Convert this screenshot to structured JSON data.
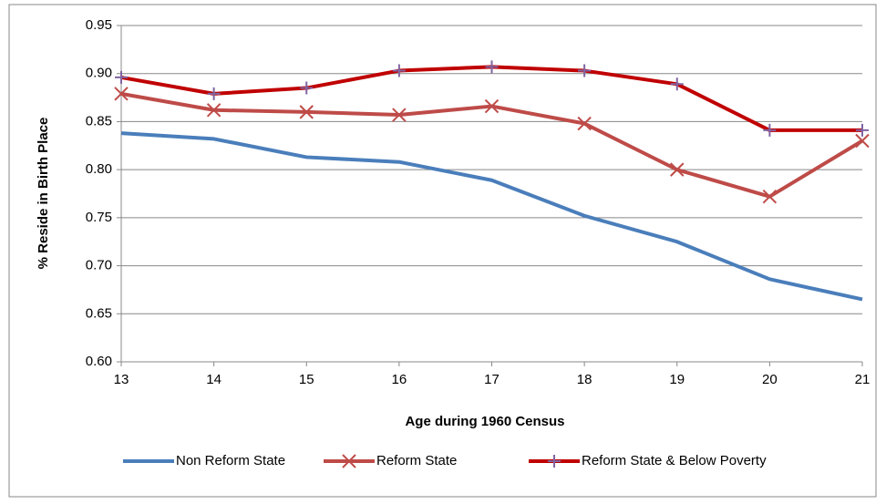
{
  "chart_data": {
    "type": "line",
    "x_label": "Age during 1960 Census",
    "y_label": "% Reside in Birth Place",
    "x": [
      13,
      14,
      15,
      16,
      17,
      18,
      19,
      20,
      21
    ],
    "xlim": [
      13,
      21
    ],
    "xticks": [
      13,
      14,
      15,
      16,
      17,
      18,
      19,
      20,
      21
    ],
    "ylim": [
      0.6,
      0.95
    ],
    "yticks": [
      {
        "value": 0.6,
        "label": "0.60"
      },
      0.65,
      {
        "value": 0.7,
        "label": "0.70"
      },
      0.75,
      {
        "value": 0.8,
        "label": "0.80"
      },
      0.85,
      {
        "value": 0.9,
        "label": "0.90"
      },
      0.95
    ],
    "grid": true,
    "legend": "bottom",
    "series": [
      {
        "name": "Non Reform State",
        "color": "#4a7ebb",
        "values": [
          0.838,
          0.832,
          0.813,
          0.808,
          0.789,
          0.752,
          0.725,
          0.686,
          0.665
        ]
      },
      {
        "name": "Reform State",
        "color": "#be4b48",
        "marker": "x",
        "marker_color": "#be4b48",
        "values": [
          0.879,
          0.862,
          0.86,
          0.857,
          0.866,
          0.848,
          0.8,
          0.772,
          0.83
        ]
      },
      {
        "name": "Reform State & Below Poverty",
        "color": "#c00000",
        "marker": "plus",
        "marker_color": "#8064a2",
        "values": [
          0.896,
          0.879,
          0.885,
          0.903,
          0.907,
          0.903,
          0.889,
          0.841,
          0.841
        ]
      }
    ]
  }
}
